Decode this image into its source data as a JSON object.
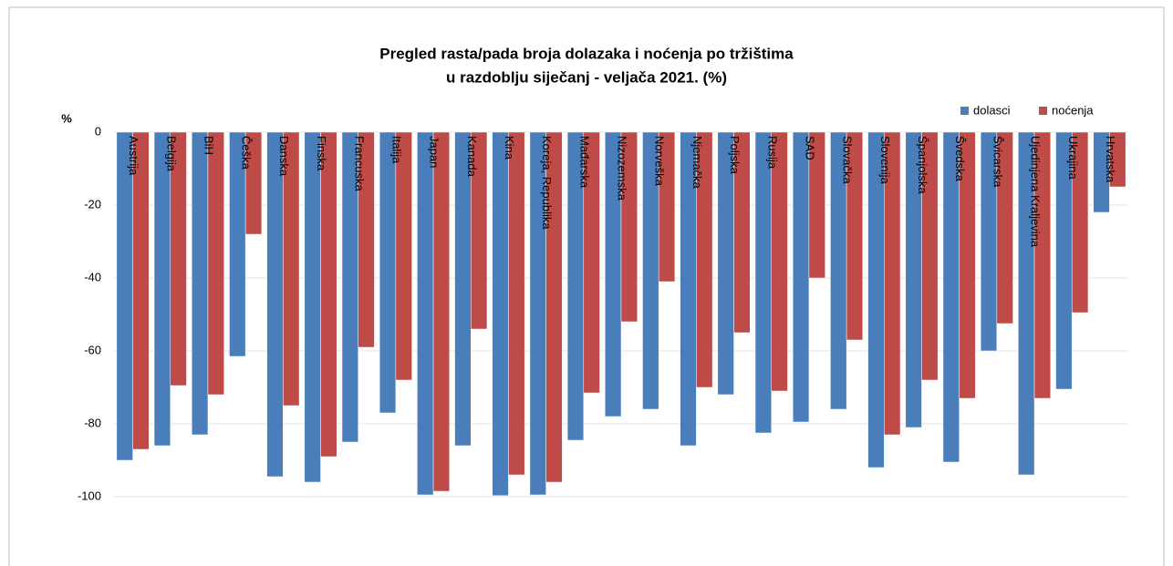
{
  "chart_data": {
    "type": "bar",
    "title": [
      "Pregled rasta/pada broja dolazaka i noćenja po tržištima",
      "u razdoblju siječanj - veljača 2021. (%)"
    ],
    "y_label": "%",
    "categories": [
      "Austrija",
      "Belgija",
      "BiH",
      "Češka",
      "Danska",
      "Finska",
      "Francuska",
      "Italija",
      "Japan",
      "Kanada",
      "Kina",
      "Koreja, Republika",
      "Mađarska",
      "Nizozemska",
      "Norveška",
      "Njemačka",
      "Poljska",
      "Rusija",
      "SAD",
      "Slovačka",
      "Slovenija",
      "Španjolska",
      "Švedska",
      "Švicarska",
      "Ujedinjena Kraljevina",
      "Ukrajina",
      "Hrvatska"
    ],
    "series": [
      {
        "name": "dolasci",
        "color": "#4a7ebb",
        "values": [
          -90,
          -86,
          -83,
          -61.5,
          -94.5,
          -96,
          -85,
          -77,
          -99.5,
          -86,
          -99.7,
          -99.5,
          -84.5,
          -78,
          -76,
          -86,
          -72,
          -82.5,
          -79.5,
          -76,
          -92,
          -81,
          -90.5,
          -60,
          -94,
          -70.5,
          -22
        ]
      },
      {
        "name": "noćenja",
        "color": "#be4b48",
        "values": [
          -87,
          -69.5,
          -72,
          -28,
          -75,
          -89,
          -59,
          -68,
          -98.5,
          -54,
          -94,
          -96,
          -71.5,
          -52,
          -41,
          -70,
          -55,
          -71,
          -40,
          -57,
          -83,
          -68,
          -73,
          -52.5,
          -73,
          -49.5,
          -15
        ]
      }
    ],
    "ylim": [
      -100,
      0
    ],
    "yticks": [
      0,
      -20,
      -40,
      -60,
      -80,
      -100
    ],
    "grid": true,
    "legend": "top-right"
  }
}
